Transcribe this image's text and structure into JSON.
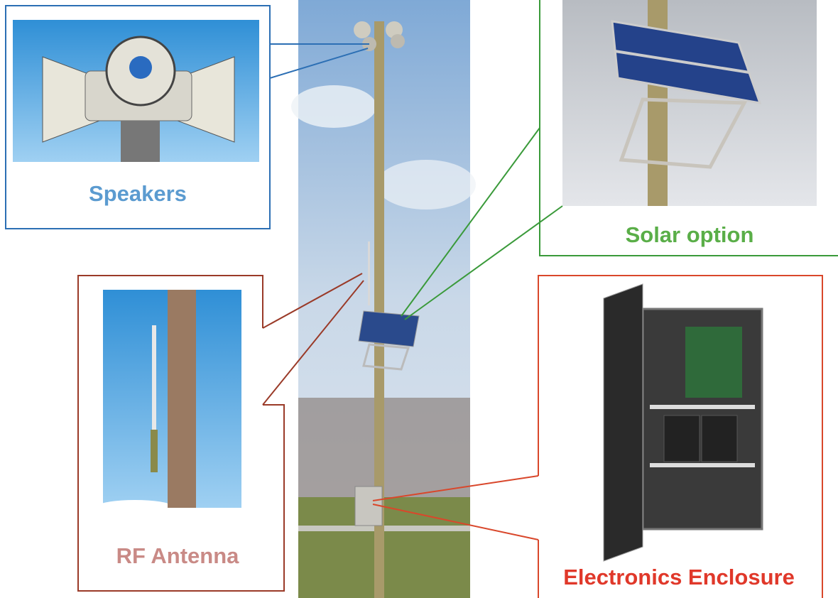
{
  "callouts": [
    {
      "label": "Speakers"
    },
    {
      "label": "Solar option"
    },
    {
      "label": "RF Antenna"
    },
    {
      "label": "Electronics Enclosure"
    }
  ]
}
